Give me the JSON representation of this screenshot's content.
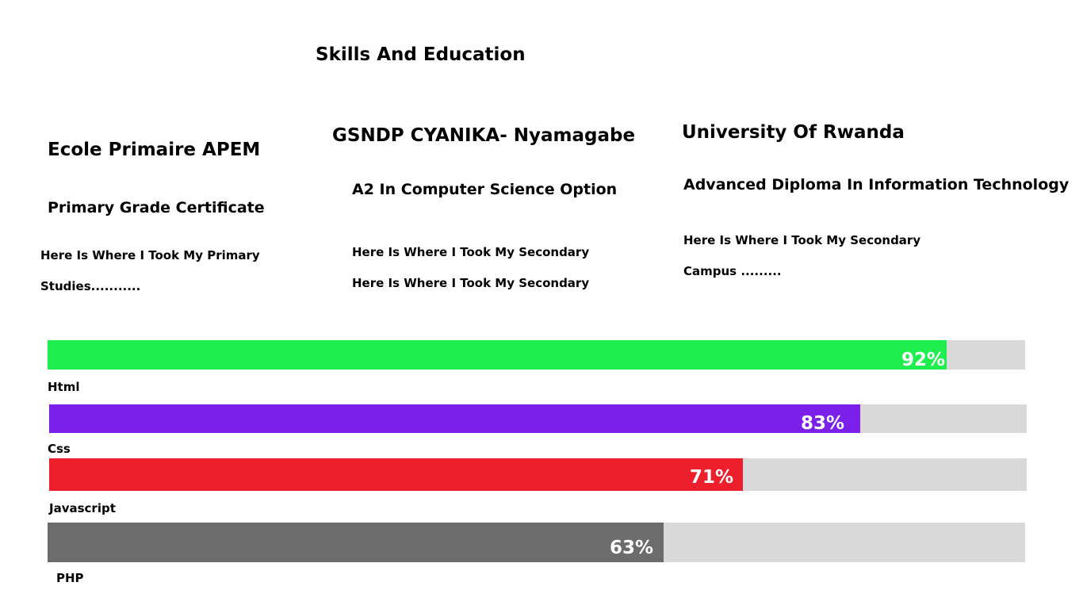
{
  "section": {
    "title": "Skills And Education"
  },
  "education": [
    {
      "school": "Ecole Primaire APEM",
      "certificate": "Primary Grade Certificate",
      "lines": [
        "Here Is Where I Took My Primary",
        "Studies..........."
      ]
    },
    {
      "school": "GSNDP CYANIKA- Nyamagabe",
      "certificate": "A2 In Computer Science Option",
      "lines": [
        "Here Is Where I Took My Secondary",
        "Here Is Where I Took My Secondary"
      ]
    },
    {
      "school": "University Of Rwanda",
      "certificate": "Advanced Diploma In Information Technology",
      "lines": [
        "Here Is Where I Took My Secondary",
        "Campus ........."
      ]
    }
  ],
  "skills": [
    {
      "name": "Html",
      "percent": 92,
      "percent_label": "92%",
      "color": "#1fee4f"
    },
    {
      "name": "Css",
      "percent": 83,
      "percent_label": "83%",
      "color": "#7b1fea"
    },
    {
      "name": "Javascript",
      "percent": 71,
      "percent_label": "71%",
      "color": "#ed1f2d"
    },
    {
      "name": "PHP",
      "percent": 63,
      "percent_label": "63%",
      "color": "#6c6c6c"
    }
  ]
}
